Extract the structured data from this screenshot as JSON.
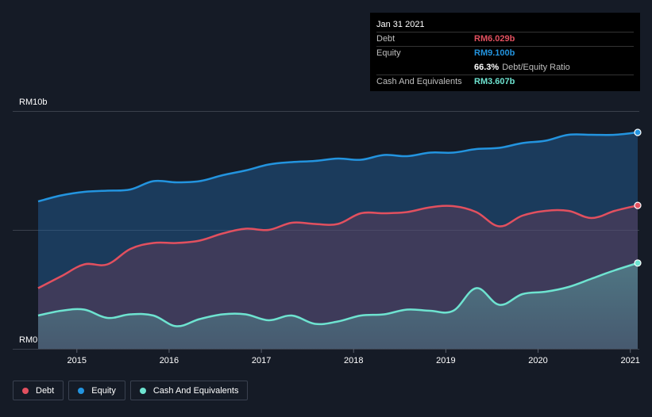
{
  "tooltip": {
    "date": "Jan 31 2021",
    "debt_label": "Debt",
    "debt_value": "RM6.029b",
    "equity_label": "Equity",
    "equity_value": "RM9.100b",
    "ratio_value": "66.3%",
    "ratio_label": "Debt/Equity Ratio",
    "cash_label": "Cash And Equivalents",
    "cash_value": "RM3.607b"
  },
  "legend": {
    "debt": "Debt",
    "equity": "Equity",
    "cash": "Cash And Equivalents"
  },
  "colors": {
    "debt": "#e2505f",
    "equity": "#2394df",
    "cash": "#6ee3d0",
    "background": "#151b26"
  },
  "chart_data": {
    "type": "area",
    "ylim": [
      0,
      10
    ],
    "xlim": [
      2014.58,
      2021.08
    ],
    "y_ticks": [
      {
        "value": 10,
        "label": "RM10b"
      },
      {
        "value": 0,
        "label": "RM0"
      }
    ],
    "x_ticks": [
      {
        "value": 2015,
        "label": "2015"
      },
      {
        "value": 2016,
        "label": "2016"
      },
      {
        "value": 2017,
        "label": "2017"
      },
      {
        "value": 2018,
        "label": "2018"
      },
      {
        "value": 2019,
        "label": "2019"
      },
      {
        "value": 2020,
        "label": "2020"
      },
      {
        "value": 2021,
        "label": "2021"
      }
    ],
    "series": [
      {
        "name": "Equity",
        "x": [
          2014.58,
          2014.83,
          2015.08,
          2015.33,
          2015.58,
          2015.83,
          2016.08,
          2016.33,
          2016.58,
          2016.83,
          2017.08,
          2017.33,
          2017.58,
          2017.83,
          2018.08,
          2018.33,
          2018.58,
          2018.83,
          2019.08,
          2019.33,
          2019.58,
          2019.83,
          2020.08,
          2020.33,
          2020.58,
          2020.83,
          2021.08
        ],
        "values": [
          6.2,
          6.45,
          6.6,
          6.65,
          6.7,
          7.05,
          7.0,
          7.05,
          7.3,
          7.5,
          7.75,
          7.85,
          7.9,
          8.0,
          7.95,
          8.15,
          8.1,
          8.25,
          8.25,
          8.4,
          8.45,
          8.65,
          8.75,
          9.0,
          9.0,
          9.0,
          9.1
        ]
      },
      {
        "name": "Debt",
        "x": [
          2014.58,
          2014.83,
          2015.08,
          2015.33,
          2015.58,
          2015.83,
          2016.08,
          2016.33,
          2016.58,
          2016.83,
          2017.08,
          2017.33,
          2017.58,
          2017.83,
          2018.08,
          2018.33,
          2018.58,
          2018.83,
          2019.08,
          2019.33,
          2019.58,
          2019.83,
          2020.08,
          2020.33,
          2020.58,
          2020.83,
          2021.08
        ],
        "values": [
          2.55,
          3.05,
          3.55,
          3.55,
          4.2,
          4.45,
          4.45,
          4.55,
          4.85,
          5.05,
          5.0,
          5.3,
          5.25,
          5.25,
          5.7,
          5.7,
          5.75,
          5.95,
          6.0,
          5.75,
          5.15,
          5.6,
          5.8,
          5.8,
          5.5,
          5.8,
          6.029
        ]
      },
      {
        "name": "Cash And Equivalents",
        "x": [
          2014.58,
          2014.83,
          2015.08,
          2015.33,
          2015.58,
          2015.83,
          2016.08,
          2016.33,
          2016.58,
          2016.83,
          2017.08,
          2017.33,
          2017.58,
          2017.83,
          2018.08,
          2018.33,
          2018.58,
          2018.83,
          2019.08,
          2019.33,
          2019.58,
          2019.83,
          2020.08,
          2020.33,
          2020.58,
          2020.83,
          2021.08
        ],
        "values": [
          1.4,
          1.6,
          1.65,
          1.3,
          1.45,
          1.4,
          0.95,
          1.25,
          1.45,
          1.45,
          1.2,
          1.4,
          1.05,
          1.15,
          1.4,
          1.45,
          1.65,
          1.6,
          1.6,
          2.55,
          1.85,
          2.3,
          2.4,
          2.6,
          2.95,
          3.3,
          3.607
        ]
      }
    ]
  }
}
